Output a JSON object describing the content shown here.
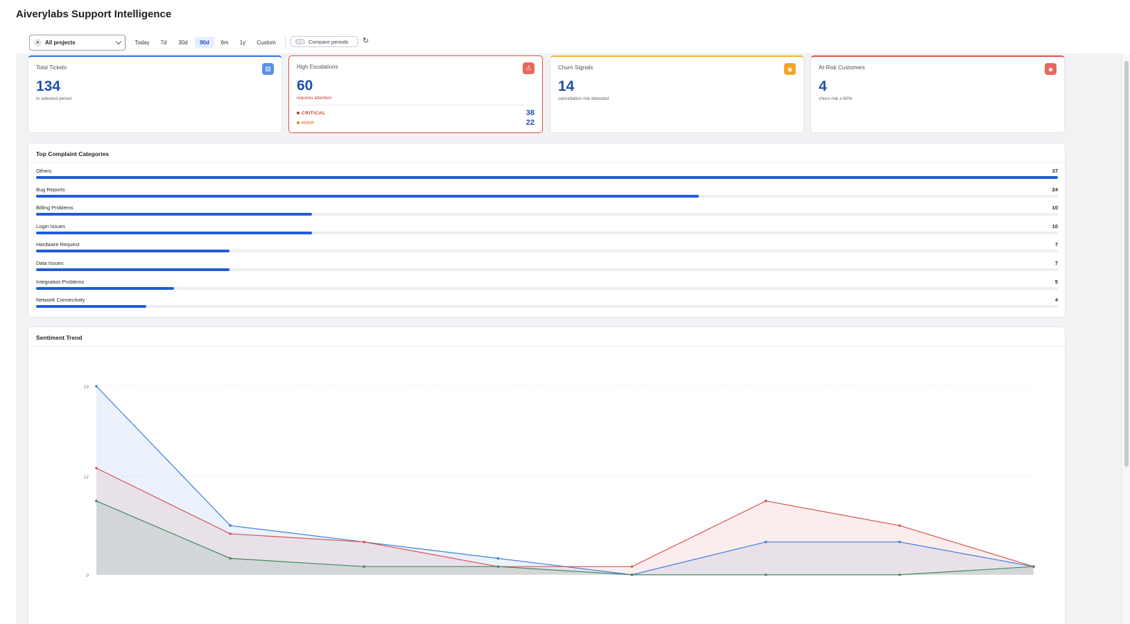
{
  "app": {
    "title": "Aiverylabs Support Intelligence"
  },
  "toolbar": {
    "project_select": {
      "value": "All projects",
      "icon": "globe-icon"
    },
    "ranges": [
      "Today",
      "7d",
      "30d",
      "90d",
      "6m",
      "1y",
      "Custom"
    ],
    "active_range": "90d",
    "compare_label": "Compare periods",
    "compare_enabled": false,
    "refresh_icon": "refresh-icon"
  },
  "kpis": {
    "total_tickets": {
      "title": "Total Tickets",
      "value": "134",
      "sub": "in selected period",
      "icon": "ticket-icon",
      "accent": "#2f6fe4"
    },
    "high_escalations": {
      "title": "High Escalations",
      "value": "60",
      "sub": "requires attention",
      "icon": "warning-icon",
      "accent": "#d9534f",
      "breakdown": [
        {
          "label": "CRITICAL",
          "count": "38",
          "color": "#c0392b"
        },
        {
          "label": "HIGH",
          "count": "22",
          "color": "#e67e22"
        }
      ]
    },
    "churn_signals": {
      "title": "Churn Signals",
      "value": "14",
      "sub": "cancellation risk detected",
      "icon": "churn-icon",
      "accent": "#f2b233"
    },
    "at_risk": {
      "title": "At-Risk Customers",
      "value": "4",
      "sub": "churn risk ≥ 60%",
      "icon": "customers-icon",
      "accent": "#d9534f"
    }
  },
  "complaints": {
    "title": "Top Complaint Categories",
    "max": 37,
    "items": [
      {
        "label": "Others",
        "count": 37
      },
      {
        "label": "Bug Reports",
        "count": 24
      },
      {
        "label": "Billing Problems",
        "count": 10
      },
      {
        "label": "Login Issues",
        "count": 10
      },
      {
        "label": "Hardware Request",
        "count": 7
      },
      {
        "label": "Data Issues",
        "count": 7
      },
      {
        "label": "Integration Problems",
        "count": 5
      },
      {
        "label": "Network Connectivity",
        "count": 4
      }
    ]
  },
  "sentiment": {
    "title": "Sentiment Trend"
  },
  "chart_data": {
    "type": "area",
    "title": "Sentiment Trend",
    "yticks": [
      0,
      12,
      23
    ],
    "ylim": [
      0,
      23
    ],
    "x_count": 8,
    "series": [
      {
        "values": [
          23,
          6,
          4,
          2,
          0,
          4,
          4,
          1
        ],
        "color": "#3b7ddd"
      },
      {
        "values": [
          13,
          5,
          4,
          1,
          1,
          9,
          6,
          1
        ],
        "color": "#d9534f"
      },
      {
        "values": [
          9,
          2,
          1,
          1,
          0,
          0,
          0,
          1
        ],
        "color": "#3d8a5e"
      }
    ]
  }
}
